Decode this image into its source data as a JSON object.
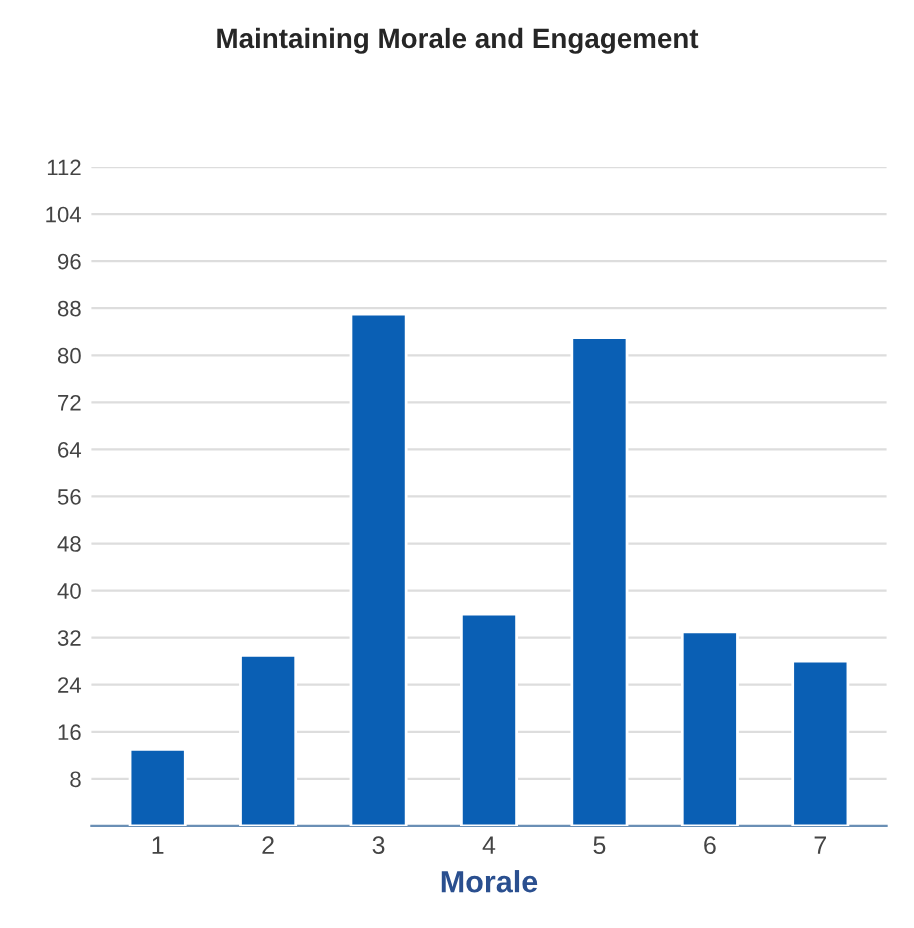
{
  "chart_data": {
    "type": "bar",
    "title": "Maintaining Morale and Engagement",
    "xlabel": "Morale",
    "categories": [
      "1",
      "2",
      "3",
      "4",
      "5",
      "6",
      "7"
    ],
    "values": [
      13,
      29,
      87,
      36,
      83,
      33,
      28
    ],
    "color": "#0a5fb4",
    "ylim": [
      0,
      112
    ],
    "yticks": [
      8,
      16,
      24,
      32,
      40,
      48,
      56,
      64,
      72,
      80,
      88,
      96,
      104,
      112
    ],
    "grid": "y"
  }
}
